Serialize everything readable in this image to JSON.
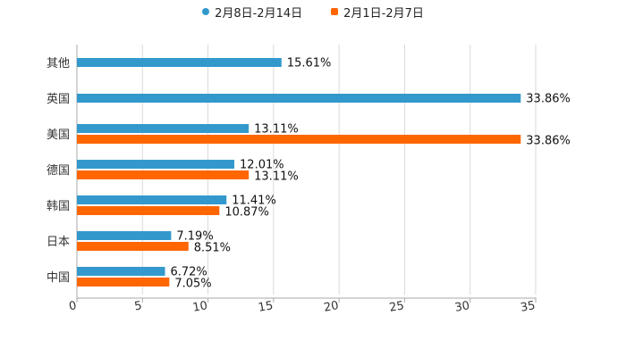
{
  "chart_data": {
    "type": "bar",
    "orientation": "horizontal",
    "categories": [
      "其他",
      "英国",
      "美国",
      "德国",
      "韩国",
      "日本",
      "中国"
    ],
    "series": [
      {
        "name": "2月8日-2月14日",
        "color": "#3399cc",
        "values": [
          15.61,
          33.86,
          13.11,
          12.01,
          11.41,
          7.19,
          6.72
        ],
        "labels": [
          "15.61%",
          "33.86%",
          "13.11%",
          "12.01%",
          "11.41%",
          "7.19%",
          "6.72%"
        ]
      },
      {
        "name": "2月1日-2月7日",
        "color": "#ff6600",
        "values": [
          null,
          null,
          33.86,
          13.11,
          10.87,
          8.51,
          7.05
        ],
        "labels": [
          null,
          null,
          "33.86%",
          "13.11%",
          "10.87%",
          "8.51%",
          "7.05%"
        ]
      }
    ],
    "xlim": [
      0,
      35
    ],
    "xticks": [
      0,
      5,
      10,
      15,
      20,
      25,
      30,
      35
    ],
    "tick_labels": [
      "0",
      "5",
      "10",
      "15",
      "20",
      "25",
      "30",
      "35"
    ],
    "grid": true,
    "legend_position": "top-center",
    "title": "",
    "xlabel": "",
    "ylabel": ""
  }
}
